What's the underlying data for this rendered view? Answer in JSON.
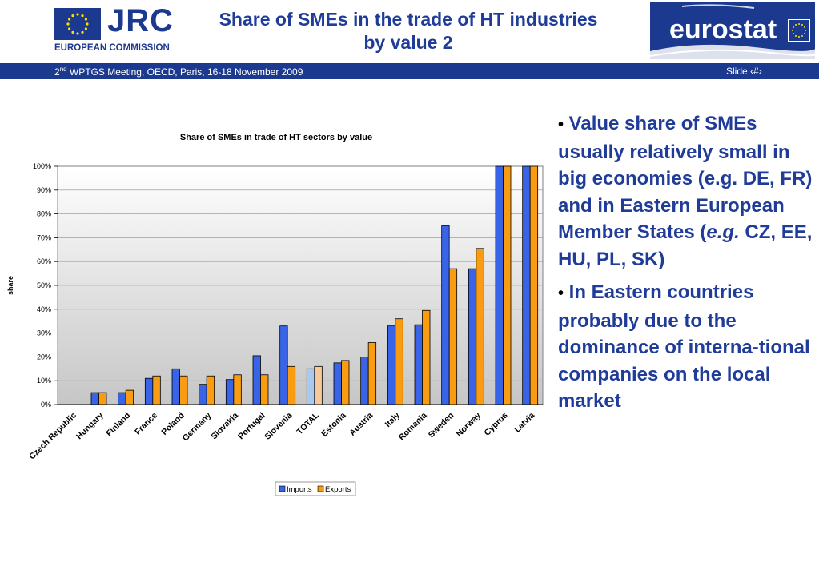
{
  "header": {
    "title_line1": "Share of SMEs in the trade of HT industries",
    "title_line2": "by value 2",
    "jrc_logo_text": "JRC",
    "ec_text": "EUROPEAN COMMISSION",
    "eurostat_logo_text": "eurostat"
  },
  "banner": {
    "meeting_ordinal": "2",
    "meeting_sup": "nd",
    "meeting_text": " WPTGS Meeting, OECD, Paris, 16-18 November 2009",
    "slide_label": "Slide ‹#›"
  },
  "colors": {
    "brand_blue": "#1b3a8f",
    "imports": "#3a64e8",
    "exports": "#f99c11",
    "total_imports": "#a9c9ef",
    "total_exports": "#f7c99a"
  },
  "chart_data": {
    "type": "bar",
    "title": "Share of SMEs in trade of HT sectors by value",
    "ylabel": "share",
    "xlabel": "",
    "ylim": [
      0,
      100
    ],
    "yticks": [
      "0%",
      "10%",
      "20%",
      "30%",
      "40%",
      "50%",
      "60%",
      "70%",
      "80%",
      "90%",
      "100%"
    ],
    "categories": [
      "Czech Republic",
      "Hungary",
      "Finland",
      "France",
      "Poland",
      "Germany",
      "Slovakia",
      "Portugal",
      "Slovenia",
      "TOTAL",
      "Estonia",
      "Austria",
      "Italy",
      "Romania",
      "Sweden",
      "Norway",
      "Cyprus",
      "Latvia"
    ],
    "series": [
      {
        "name": "Imports",
        "values": [
          0,
          5,
          5,
          11,
          15,
          8.5,
          10.5,
          20.5,
          33,
          15,
          17.5,
          20,
          33,
          33.5,
          75,
          57,
          100,
          100
        ]
      },
      {
        "name": "Exports",
        "values": [
          0,
          5,
          6,
          12,
          12,
          12,
          12.5,
          12.5,
          16,
          16,
          18.5,
          26,
          36,
          39.5,
          57,
          65.5,
          100,
          100
        ]
      }
    ],
    "legend_position": "bottom-center",
    "grid": true
  },
  "bullets": [
    {
      "text_before": " Value share of SMEs usually relatively small in big economies (e.g. DE, FR) and in Eastern European Member States (",
      "italic": "e.g.",
      "text_after": " CZ, EE, HU, PL, SK)"
    },
    {
      "text_before": " In Eastern countries probably due to the dominance of interna-tional companies on the local market"
    }
  ]
}
